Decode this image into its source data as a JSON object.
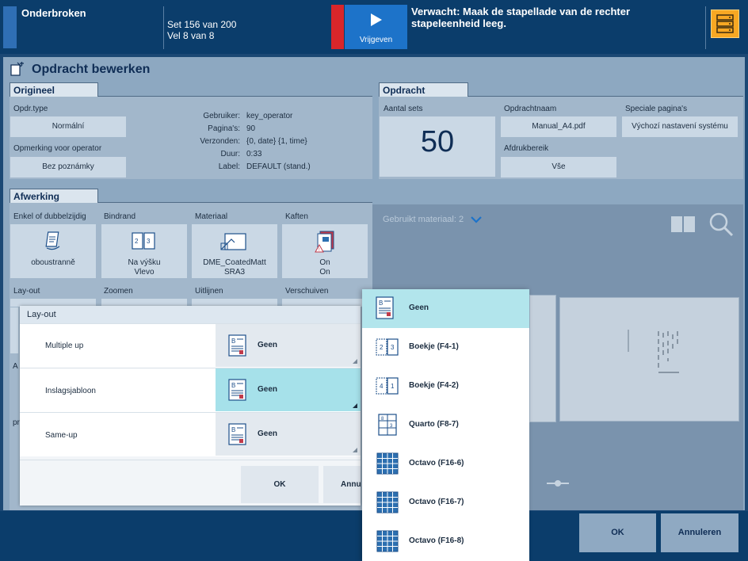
{
  "status": {
    "state": "Onderbroken",
    "set_line": "Set 156 van 200",
    "sheet_line": "Vel 8 van 8",
    "release_label": "Vrijgeven",
    "message": "Verwacht: Maak de stapellade van de rechter stapeleenheid leeg."
  },
  "page": {
    "title": "Opdracht bewerken"
  },
  "origineel": {
    "tab": "Origineel",
    "job_type_label": "Opdr.type",
    "job_type_value": "Normální",
    "operator_note_label": "Opmerking voor operator",
    "operator_note_value": "Bez poznámky",
    "info": [
      {
        "key": "Gebruiker:",
        "value": "key_operator"
      },
      {
        "key": "Pagina's:",
        "value": "90"
      },
      {
        "key": "Verzonden:",
        "value": "{0, date} {1, time}"
      },
      {
        "key": "Duur:",
        "value": "0:33"
      },
      {
        "key": "Label:",
        "value": "DEFAULT (stand.)"
      }
    ]
  },
  "opdracht": {
    "tab": "Opdracht",
    "sets_label": "Aantal sets",
    "sets_value": "50",
    "name_label": "Opdrachtnaam",
    "name_value": "Manual_A4.pdf",
    "range_label": "Afdrukbereik",
    "range_value": "Vše",
    "special_label": "Speciale pagina's",
    "special_value": "Výchozí nastavení systému"
  },
  "afwerking": {
    "tab": "Afwerking",
    "tiles": [
      {
        "label": "Enkel of dubbelzijdig",
        "line1": "oboustranně",
        "line2": ""
      },
      {
        "label": "Bindrand",
        "line1": "Na výšku",
        "line2": "Vlevo"
      },
      {
        "label": "Materiaal",
        "line1": "DME_CoatedMatt",
        "line2": "SRA3"
      },
      {
        "label": "Kaften",
        "line1": "On",
        "line2": "On"
      }
    ],
    "row2_labels": [
      "Lay-out",
      "Zoomen",
      "Uitlijnen",
      "Verschuiven"
    ],
    "partial_a": "A",
    "partial_pr": "pr"
  },
  "preview": {
    "used_material": "Gebruikt materiaal: 2"
  },
  "layout_dialog": {
    "title": "Lay-out",
    "rows": [
      {
        "label": "Multiple up",
        "value": "Geen"
      },
      {
        "label": "Inslagsjabloon",
        "value": "Geen"
      },
      {
        "label": "Same-up",
        "value": "Geen"
      }
    ],
    "ok": "OK",
    "cancel": "Annu"
  },
  "dropdown": {
    "items": [
      "Geen",
      "Boekje (F4-1)",
      "Boekje (F4-2)",
      "Quarto (F8-7)",
      "Octavo (F16-6)",
      "Octavo (F16-7)",
      "Octavo (F16-8)"
    ],
    "selected": "Geen"
  },
  "footer": {
    "ok": "OK",
    "cancel": "Annuleren"
  },
  "colors": {
    "accent": "#1d73c9",
    "alert": "#d8262a",
    "warning": "#f7a823",
    "selection": "#b2e5ec"
  }
}
